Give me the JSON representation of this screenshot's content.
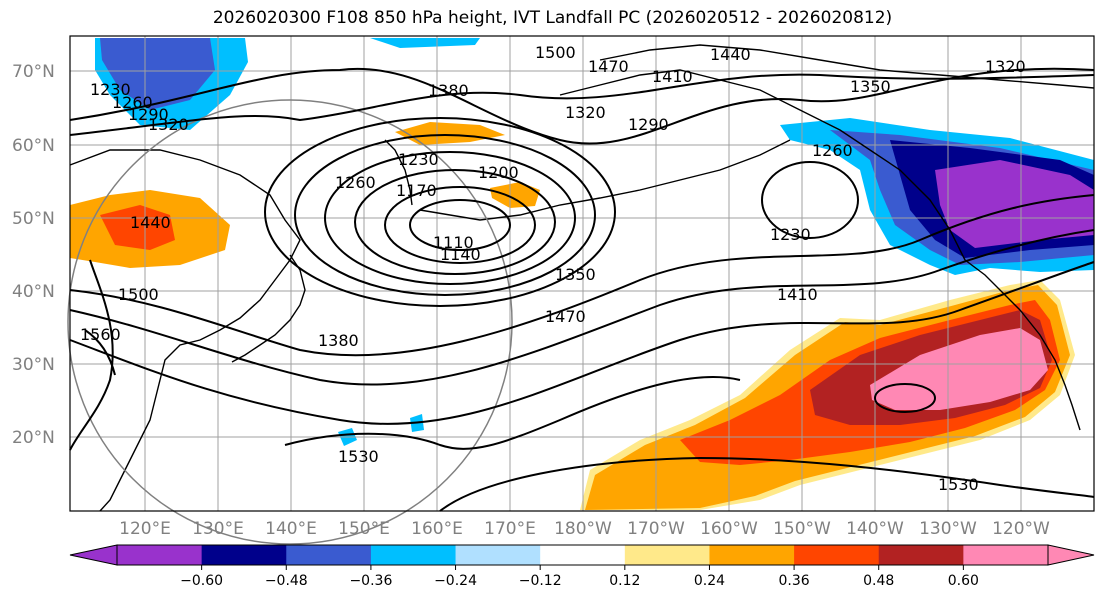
{
  "title": "2026020300 F108 850 hPa height, IVT Landfall PC (2026020512 - 2026020812)",
  "lat_labels": [
    "70°N",
    "60°N",
    "50°N",
    "40°N",
    "30°N",
    "20°N"
  ],
  "lon_labels": [
    "120°E",
    "130°E",
    "140°E",
    "150°E",
    "160°E",
    "170°E",
    "180°W",
    "170°W",
    "160°W",
    "150°W",
    "140°W",
    "130°W",
    "120°W"
  ],
  "contour_labels": [
    "1500",
    "1470",
    "1410",
    "1440",
    "1380",
    "1350",
    "1320",
    "1290",
    "1230",
    "1260",
    "1290",
    "1320",
    "1230",
    "1260",
    "1200",
    "1170",
    "1110",
    "1140",
    "1440",
    "1260",
    "1230",
    "1410",
    "1350",
    "1470",
    "1380",
    "1500",
    "1560",
    "1530",
    "1530",
    "1320"
  ],
  "colorbar": {
    "ticks": [
      "−0.60",
      "−0.48",
      "−0.36",
      "−0.24",
      "−0.12",
      "0.12",
      "0.24",
      "0.36",
      "0.48",
      "0.60"
    ],
    "colors": [
      "#9932cc",
      "#00008b",
      "#3a5bd0",
      "#00bfff",
      "#b0e0ff",
      "#ffffff",
      "#ffe98a",
      "#ffa500",
      "#ff4500",
      "#b22222",
      "#ff88b4",
      "#ff88b4"
    ]
  },
  "colors": {
    "contour": "#000000",
    "grid": "#a0a0a0",
    "tick_label": "#808080"
  }
}
